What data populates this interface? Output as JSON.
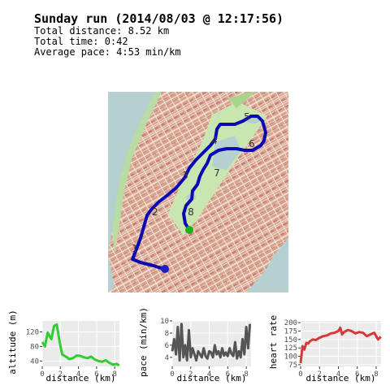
{
  "summary": {
    "title": "Sunday run (2014/08/03 @ 12:17:56)",
    "distance": "Total distance: 8.52 km",
    "time": "Total time: 0:42",
    "pace": "Average pace: 4:53 min/km"
  },
  "map": {
    "markers": [
      "1",
      "2",
      "3",
      "4",
      "5",
      "6",
      "7",
      "8"
    ],
    "route_color": "#0a0ab4",
    "start_color": "#1bb11b",
    "end_color": "#2020c8"
  },
  "chart_data": [
    {
      "type": "line",
      "ylabel": "altitude (m)",
      "xlabel": "distance (km)",
      "x": [
        0,
        0.3,
        0.6,
        1,
        1.3,
        1.6,
        1.9,
        2.2,
        2.6,
        3,
        3.4,
        3.8,
        4.2,
        4.6,
        5,
        5.4,
        5.8,
        6.2,
        6.6,
        7,
        7.4,
        7.8,
        8.2,
        8.5
      ],
      "y": [
        92,
        80,
        118,
        100,
        136,
        140,
        95,
        58,
        52,
        45,
        48,
        55,
        54,
        50,
        48,
        52,
        44,
        40,
        38,
        42,
        35,
        30,
        32,
        28
      ],
      "xticks": [
        "0",
        "2",
        "4",
        "6",
        "8"
      ],
      "yticks": [
        "40",
        "80",
        "120"
      ],
      "xlim": [
        0,
        8.52
      ],
      "ylim": [
        25,
        150
      ],
      "color": "#32cd32"
    },
    {
      "type": "line",
      "ylabel": "pace (min/km)",
      "xlabel": "distance (km)",
      "x": [
        0,
        0.2,
        0.4,
        0.6,
        0.8,
        1,
        1.2,
        1.4,
        1.6,
        1.8,
        2,
        2.2,
        2.4,
        2.6,
        2.8,
        3,
        3.2,
        3.4,
        3.6,
        3.8,
        4,
        4.2,
        4.4,
        4.6,
        4.8,
        5,
        5.2,
        5.4,
        5.6,
        5.8,
        6,
        6.2,
        6.4,
        6.6,
        6.8,
        7,
        7.2,
        7.4,
        7.6,
        7.8,
        8,
        8.2,
        8.4
      ],
      "y": [
        5,
        7,
        4.5,
        9,
        3.5,
        9.5,
        4,
        6,
        3.5,
        8.5,
        4,
        5.5,
        4.5,
        3.5,
        5,
        4.5,
        4,
        5.5,
        4.2,
        3.8,
        5,
        4.8,
        4,
        6,
        4.5,
        5,
        4,
        5.5,
        4.3,
        4.8,
        4.2,
        5.5,
        4.6,
        4.2,
        6.5,
        3.8,
        5,
        4,
        7,
        4.5,
        9,
        5.5,
        9.5
      ],
      "xticks": [
        "0",
        "2",
        "4",
        "6",
        "8"
      ],
      "yticks": [
        "4",
        "6",
        "8",
        "10"
      ],
      "xlim": [
        0,
        8.52
      ],
      "ylim": [
        2.5,
        10
      ],
      "color": "#555555"
    },
    {
      "type": "line",
      "ylabel": "heart rate",
      "xlabel": "distance (km)",
      "x": [
        0,
        0.2,
        0.4,
        0.6,
        0.8,
        1,
        1.3,
        1.6,
        2,
        2.4,
        2.8,
        3.2,
        3.6,
        4,
        4.2,
        4.4,
        4.6,
        5,
        5.4,
        5.8,
        6.2,
        6.6,
        7,
        7.4,
        7.8,
        8.2,
        8.5
      ],
      "y": [
        80,
        130,
        120,
        140,
        138,
        145,
        150,
        148,
        155,
        160,
        162,
        168,
        170,
        175,
        185,
        165,
        172,
        178,
        175,
        168,
        172,
        170,
        160,
        165,
        170,
        150,
        158
      ],
      "xticks": [
        "0",
        "2",
        "4",
        "6",
        "8"
      ],
      "yticks": [
        "75",
        "100",
        "125",
        "150",
        "175",
        "200"
      ],
      "xlim": [
        0,
        8.52
      ],
      "ylim": [
        70,
        205
      ],
      "color": "#d43a3a"
    }
  ]
}
